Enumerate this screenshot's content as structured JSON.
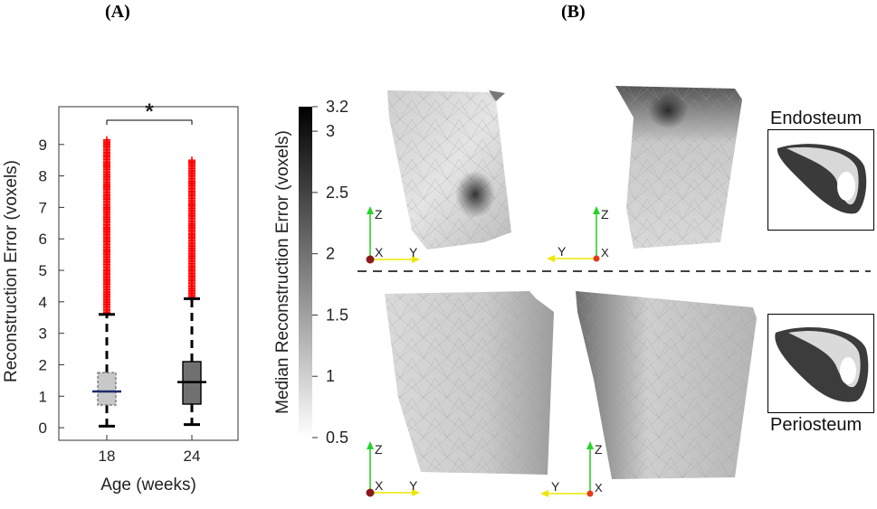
{
  "panels": {
    "a": "(A)",
    "b": "(B)"
  },
  "chart_data": [
    {
      "type": "box",
      "xlabel": "Age (weeks)",
      "ylabel": "Reconstruction Error (voxels)",
      "categories": [
        "18",
        "24"
      ],
      "ylim": [
        -0.4,
        10.2
      ],
      "yticks": [
        0,
        1,
        2,
        3,
        4,
        5,
        6,
        7,
        8,
        9
      ],
      "boxes": [
        {
          "category": "18",
          "whisker_low": 0.05,
          "q1": 0.72,
          "median": 1.15,
          "q3": 1.75,
          "whisker_high": 3.6,
          "outlier_min": 3.6,
          "outlier_max": 9.15,
          "fill": "#c8c8c8",
          "median_color": "#1f2b6e"
        },
        {
          "category": "24",
          "whisker_low": 0.1,
          "q1": 0.75,
          "median": 1.45,
          "q3": 2.1,
          "whisker_high": 4.1,
          "outlier_min": 4.1,
          "outlier_max": 8.5,
          "fill": "#707070",
          "median_color": "#000000"
        }
      ],
      "outlier_color": "#ff0000",
      "significance": {
        "from": "18",
        "to": "24",
        "label": "*"
      }
    },
    {
      "type": "colorbar",
      "label": "Median Reconstruction Error (voxels)",
      "range": [
        0.5,
        3.2
      ],
      "ticks": [
        0.5,
        1,
        1.5,
        2,
        2.5,
        3,
        3.2
      ],
      "colors": [
        "#ffffff",
        "#000000"
      ]
    }
  ],
  "views": {
    "axes": {
      "z": "Z",
      "x": "X",
      "y": "Y"
    },
    "insets": {
      "top": "Endosteum",
      "bottom": "Periosteum"
    }
  }
}
